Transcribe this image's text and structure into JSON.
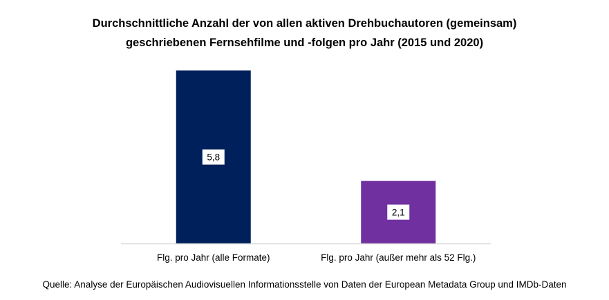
{
  "chart_data": {
    "type": "bar",
    "title_lines": [
      "Durchschnittliche Anzahl der von allen aktiven Drehbuchautoren (gemeinsam)",
      "geschriebenen Fernsehfilme und -folgen pro Jahr (2015 und 2020)"
    ],
    "categories": [
      "Flg. pro Jahr (alle Formate)",
      "Flg. pro Jahr (außer mehr als 52 Flg.)"
    ],
    "values": [
      5.8,
      2.1
    ],
    "data_labels": [
      "5,8",
      "2,1"
    ],
    "colors": [
      "#00205B",
      "#7030A0"
    ],
    "ylim": [
      0,
      6.5
    ],
    "xlabel": "",
    "ylabel": "",
    "grid": false,
    "legend": "none"
  },
  "source": "Quelle: Analyse der Europäischen Audiovisuellen Informationsstelle von Daten der European Metadata Group und IMDb-Daten",
  "colors": {
    "axis": "#D9D9D9"
  }
}
